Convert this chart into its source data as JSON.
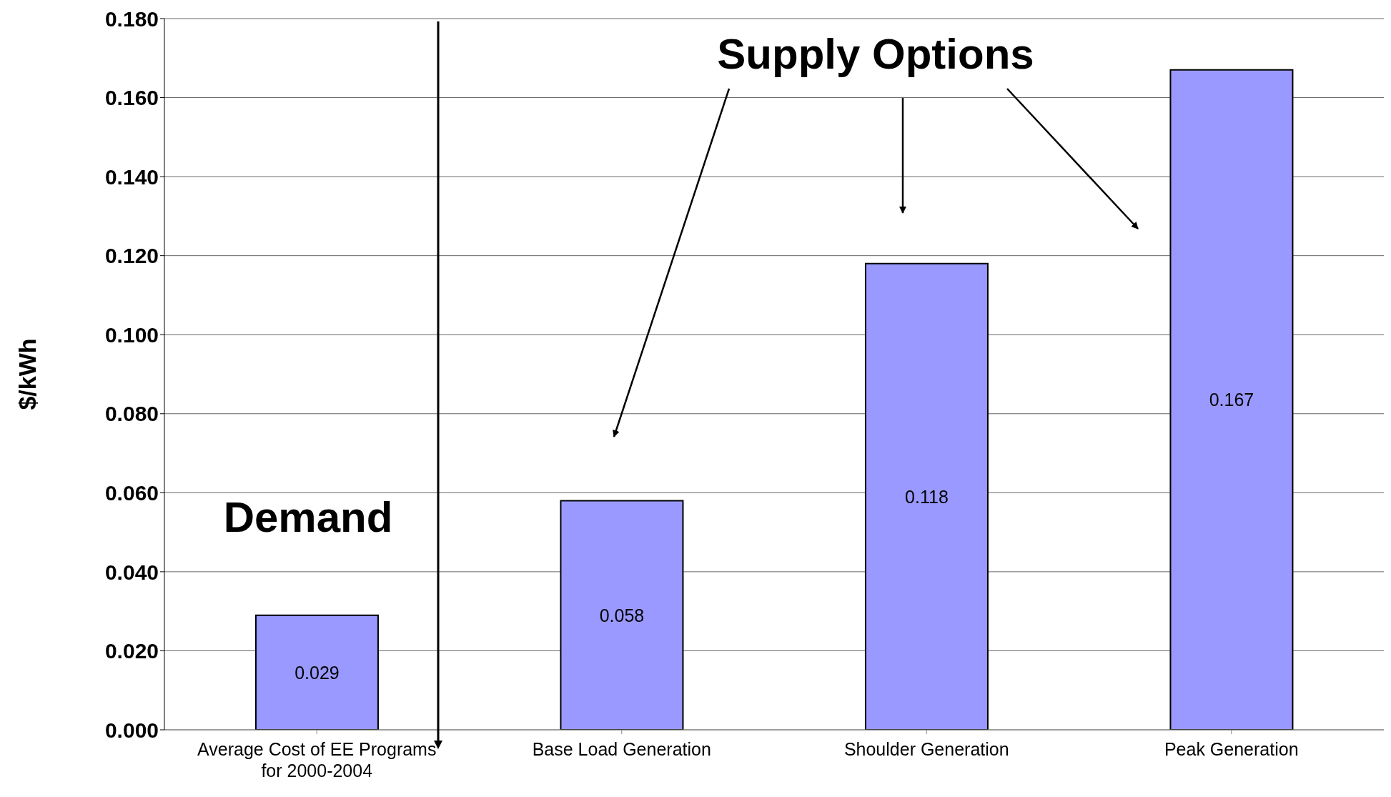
{
  "chart_data": {
    "type": "bar",
    "ylabel": "$/kWh",
    "categories": [
      "Average Cost of EE Programs for 2000-2004",
      "Base Load Generation",
      "Shoulder Generation",
      "Peak Generation"
    ],
    "values": [
      0.029,
      0.058,
      0.118,
      0.167
    ],
    "color": "#9999ff",
    "ylim": [
      0,
      0.18
    ],
    "yticks": [
      {
        "value": 0,
        "label": "0.000"
      },
      {
        "value": 0.02,
        "label": "0.020"
      },
      {
        "value": 0.04,
        "label": "0.040"
      },
      {
        "value": 0.06,
        "label": "0.060"
      },
      {
        "value": 0.08,
        "label": "0.080"
      },
      {
        "value": 0.1,
        "label": "0.100"
      },
      {
        "value": 0.12,
        "label": "0.120"
      },
      {
        "value": 0.14,
        "label": "0.140"
      },
      {
        "value": 0.16,
        "label": "0.160"
      },
      {
        "value": 0.18,
        "label": "0.180"
      }
    ],
    "grid": "y",
    "legend": false,
    "data_labels": true,
    "annotations": [
      "Demand",
      "Supply Options"
    ]
  }
}
